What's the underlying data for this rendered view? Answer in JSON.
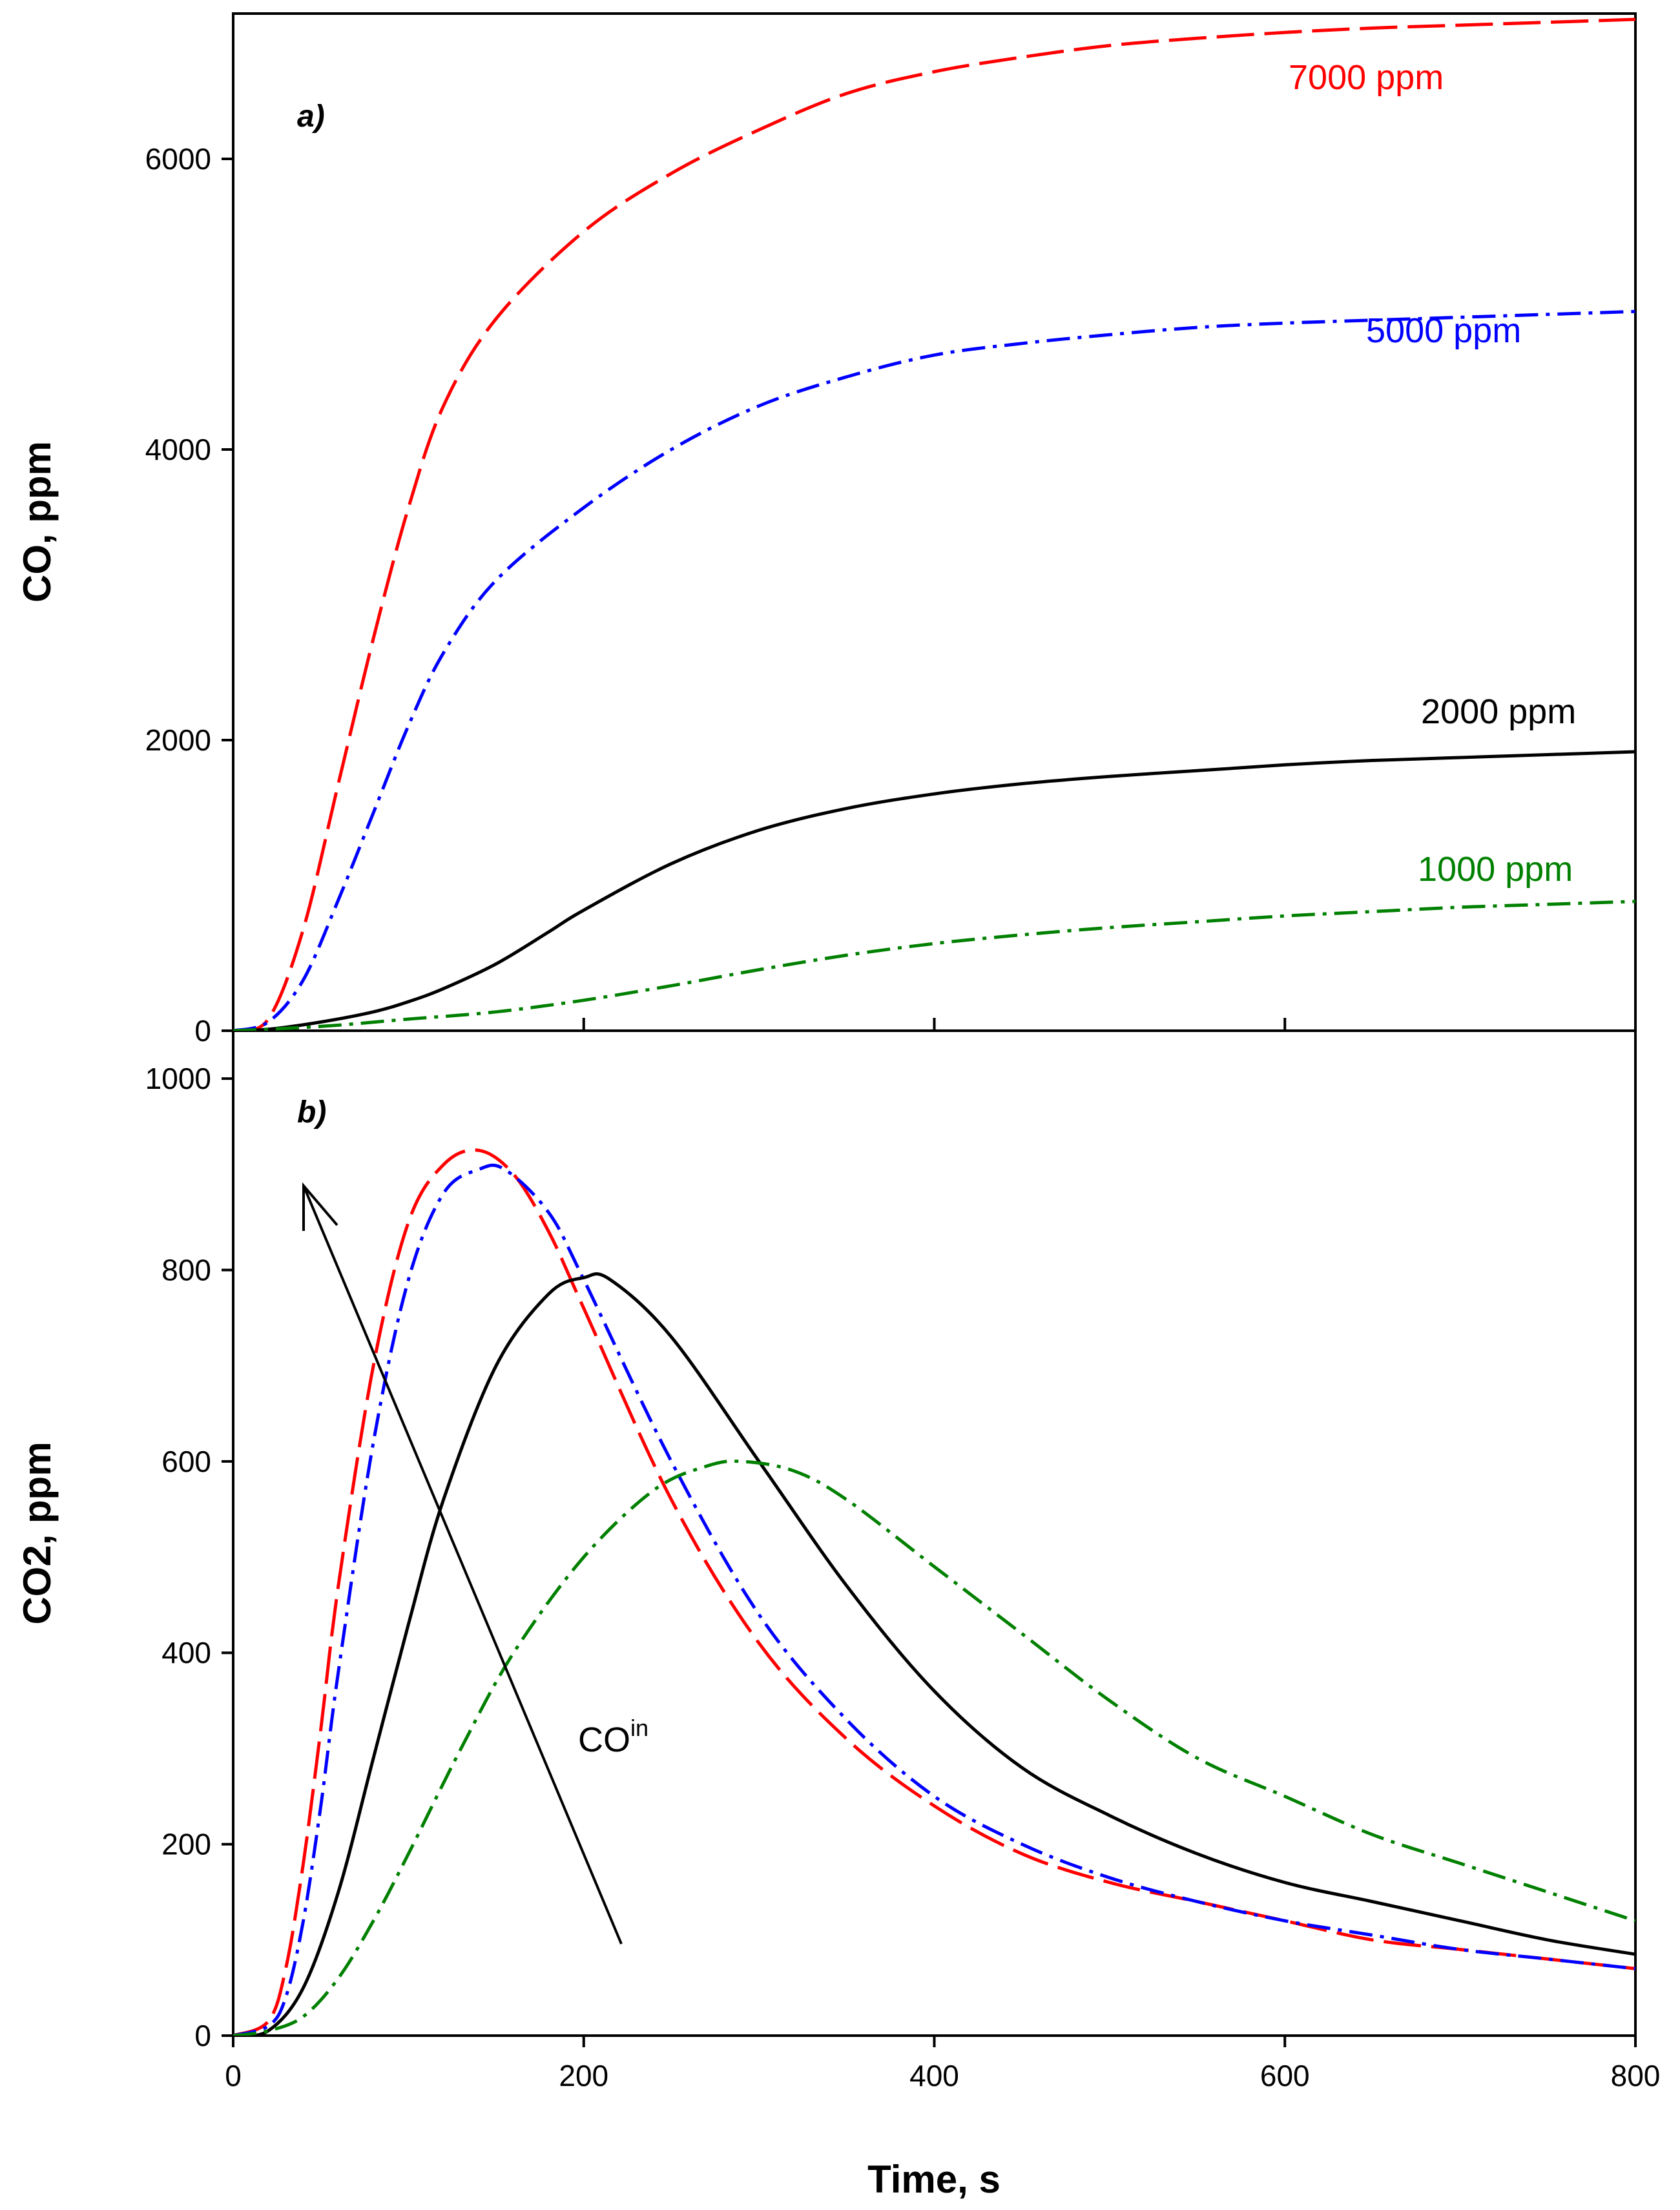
{
  "chart_data": [
    {
      "type": "line",
      "panel": "a)",
      "ylabel": "CO, ppm",
      "xlabel": "",
      "xlim": [
        0,
        800
      ],
      "ylim": [
        0,
        7000
      ],
      "xticks": [
        200,
        400,
        600
      ],
      "yticks": [
        0,
        2000,
        4000,
        6000
      ],
      "series": [
        {
          "name": "7000 ppm",
          "color": "#ff0000",
          "dash": "long-dash",
          "x": [
            0,
            20,
            40,
            60,
            80,
            100,
            120,
            150,
            200,
            250,
            300,
            350,
            400,
            450,
            500,
            550,
            600,
            650,
            700,
            750,
            800
          ],
          "values": [
            0,
            80,
            700,
            1700,
            2700,
            3600,
            4300,
            4900,
            5500,
            5900,
            6200,
            6450,
            6600,
            6700,
            6780,
            6830,
            6870,
            6900,
            6920,
            6940,
            6960
          ]
        },
        {
          "name": "5000 ppm",
          "color": "#0000ff",
          "dash": "dash-dot",
          "x": [
            0,
            20,
            40,
            60,
            80,
            100,
            120,
            150,
            200,
            250,
            300,
            350,
            400,
            450,
            500,
            550,
            600,
            650,
            700,
            750,
            800
          ],
          "values": [
            0,
            60,
            350,
            900,
            1500,
            2100,
            2600,
            3100,
            3600,
            4000,
            4300,
            4500,
            4650,
            4730,
            4790,
            4840,
            4870,
            4890,
            4910,
            4930,
            4950
          ]
        },
        {
          "name": "2000 ppm",
          "color": "#000000",
          "dash": "solid",
          "x": [
            0,
            20,
            50,
            80,
            100,
            120,
            150,
            180,
            200,
            250,
            300,
            350,
            400,
            450,
            500,
            550,
            600,
            650,
            700,
            750,
            800
          ],
          "values": [
            0,
            10,
            60,
            130,
            200,
            290,
            460,
            680,
            830,
            1150,
            1380,
            1530,
            1630,
            1700,
            1750,
            1790,
            1830,
            1860,
            1880,
            1900,
            1920
          ]
        },
        {
          "name": "1000 ppm",
          "color": "#008000",
          "dash": "dash-dot",
          "x": [
            0,
            50,
            100,
            150,
            200,
            250,
            300,
            350,
            400,
            450,
            500,
            550,
            600,
            650,
            700,
            750,
            800
          ],
          "values": [
            0,
            30,
            80,
            130,
            210,
            310,
            420,
            520,
            600,
            660,
            710,
            750,
            790,
            820,
            850,
            870,
            890
          ]
        }
      ],
      "annotations": [
        "a)"
      ]
    },
    {
      "type": "line",
      "panel": "b)",
      "ylabel": "CO2, ppm",
      "xlabel": "Time, s",
      "xlim": [
        0,
        800
      ],
      "ylim": [
        0,
        1050
      ],
      "xticks": [
        0,
        200,
        400,
        600,
        800
      ],
      "yticks": [
        0,
        200,
        400,
        600,
        800,
        1000
      ],
      "series": [
        {
          "name": "7000 ppm",
          "color": "#ff0000",
          "dash": "long-dash",
          "x": [
            0,
            20,
            30,
            40,
            50,
            60,
            80,
            100,
            120,
            140,
            160,
            180,
            200,
            250,
            300,
            350,
            400,
            450,
            500,
            550,
            600,
            650,
            700,
            750,
            800
          ],
          "values": [
            0,
            15,
            70,
            180,
            320,
            470,
            700,
            850,
            910,
            925,
            900,
            840,
            760,
            560,
            410,
            310,
            240,
            190,
            160,
            140,
            120,
            100,
            90,
            80,
            70
          ]
        },
        {
          "name": "5000 ppm",
          "color": "#0000ff",
          "dash": "dash-dot",
          "x": [
            0,
            20,
            30,
            40,
            50,
            60,
            80,
            100,
            120,
            140,
            155,
            180,
            200,
            250,
            300,
            350,
            400,
            450,
            500,
            550,
            600,
            650,
            700,
            750,
            800
          ],
          "values": [
            0,
            10,
            40,
            120,
            240,
            380,
            620,
            790,
            880,
            905,
            905,
            860,
            790,
            600,
            440,
            330,
            250,
            200,
            165,
            140,
            120,
            105,
            90,
            80,
            70
          ]
        },
        {
          "name": "2000 ppm",
          "color": "#000000",
          "dash": "solid",
          "x": [
            0,
            20,
            40,
            60,
            80,
            100,
            120,
            150,
            180,
            200,
            215,
            250,
            300,
            350,
            400,
            450,
            500,
            550,
            600,
            650,
            700,
            750,
            800
          ],
          "values": [
            0,
            5,
            50,
            150,
            290,
            430,
            560,
            700,
            775,
            792,
            790,
            730,
            600,
            470,
            360,
            280,
            230,
            190,
            160,
            140,
            120,
            100,
            85
          ]
        },
        {
          "name": "1000 ppm",
          "color": "#008000",
          "dash": "dash-dot",
          "x": [
            0,
            20,
            40,
            60,
            80,
            100,
            130,
            160,
            200,
            240,
            270,
            290,
            320,
            350,
            400,
            450,
            500,
            550,
            600,
            650,
            700,
            750,
            800
          ],
          "values": [
            0,
            5,
            20,
            60,
            120,
            190,
            300,
            400,
            500,
            570,
            595,
            600,
            590,
            560,
            490,
            420,
            350,
            290,
            250,
            210,
            180,
            150,
            120
          ]
        }
      ],
      "arrow_label": "CO",
      "arrow_label_sup": "in",
      "annotations": [
        "b)"
      ]
    }
  ]
}
